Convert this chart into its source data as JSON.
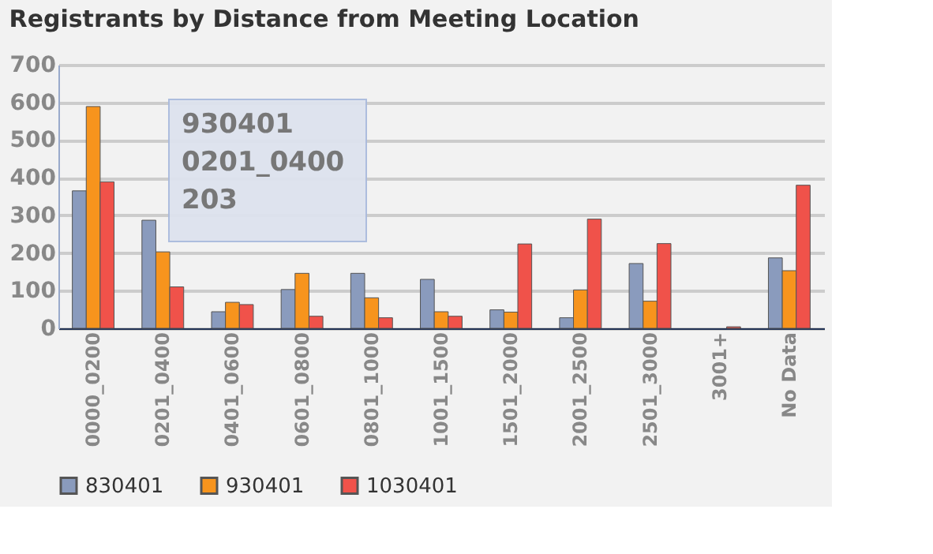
{
  "chart_data": {
    "type": "bar",
    "title": "Registrants by Distance from Meeting Location",
    "categories": [
      "0000_0200",
      "0201_0400",
      "0401_0600",
      "0601_0800",
      "0801_1000",
      "1001_1500",
      "1501_2000",
      "2001_2500",
      "2501_3000",
      "3001+",
      "No Data"
    ],
    "series": [
      {
        "name": "830401",
        "color": "#8a9bbd",
        "values": [
          365,
          287,
          44,
          103,
          146,
          130,
          49,
          28,
          172,
          null,
          187
        ]
      },
      {
        "name": "930401",
        "color": "#f7941d",
        "values": [
          589,
          203,
          69,
          146,
          81,
          44,
          43,
          102,
          72,
          null,
          153
        ]
      },
      {
        "name": "1030401",
        "color": "#f0524a",
        "values": [
          389,
          110,
          63,
          32,
          28,
          32,
          224,
          290,
          225,
          4,
          380
        ]
      }
    ],
    "ylim": [
      0,
      700
    ],
    "yticks": [
      0,
      100,
      200,
      300,
      400,
      500,
      600,
      700
    ],
    "grid": "y",
    "legend": "bottom",
    "annotations": [
      "930401\n0201_0400\n203"
    ]
  }
}
